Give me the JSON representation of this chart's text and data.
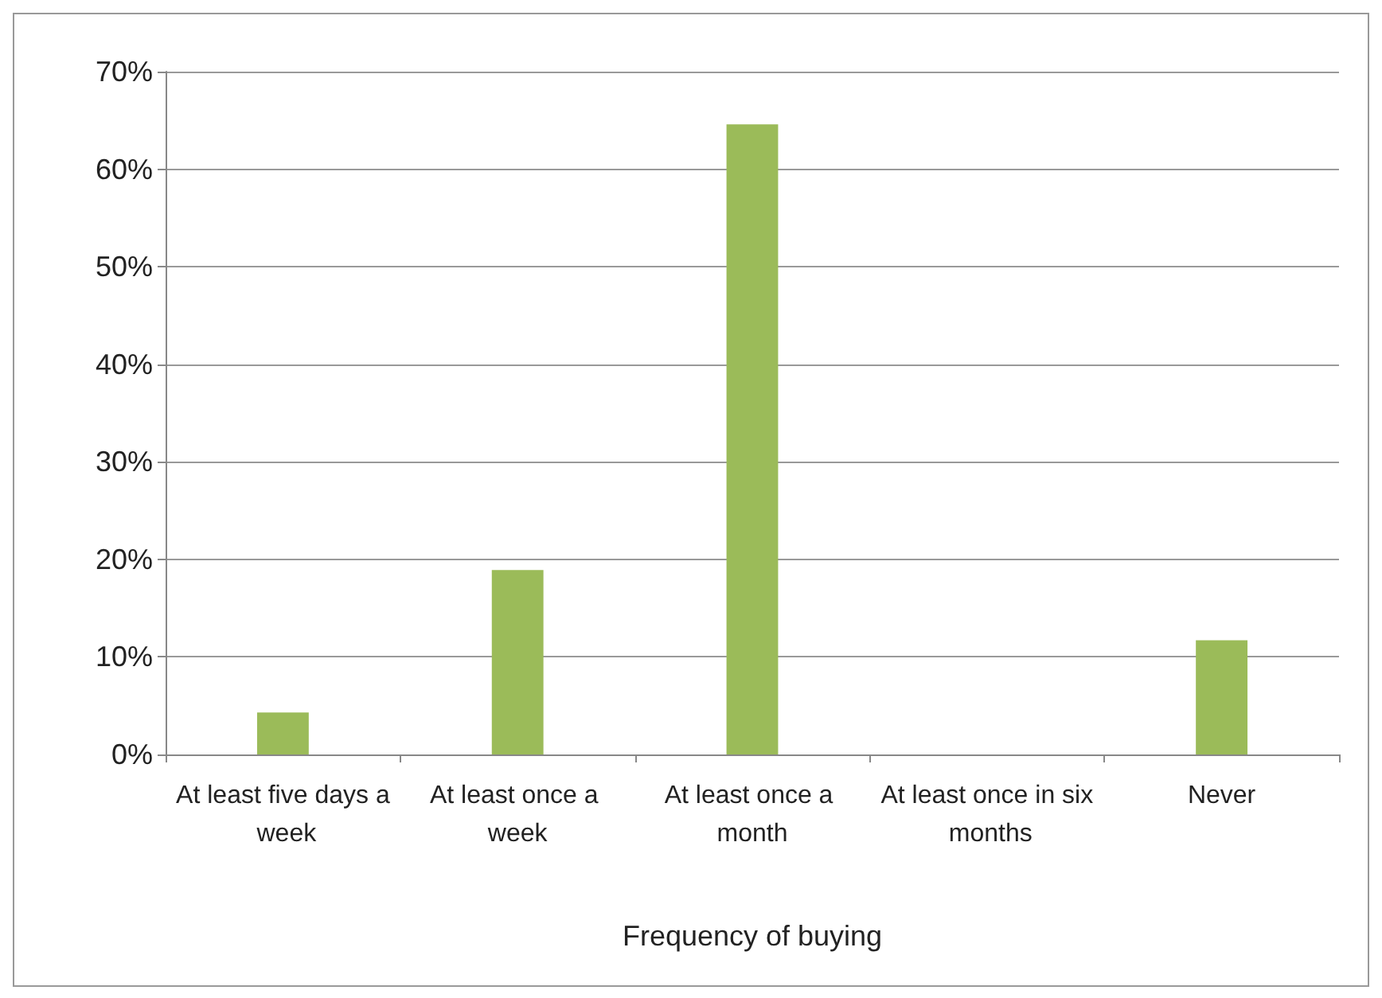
{
  "chart_data": {
    "type": "bar",
    "xlabel": "Frequency of buying",
    "categories": [
      "At least five days a week",
      "At least once a week",
      "At least once a month",
      "At least once in six months",
      "Never"
    ],
    "values": [
      4.3,
      18.9,
      64.6,
      0,
      11.7
    ],
    "color": "#9bbb59",
    "ylim": [
      0,
      70
    ],
    "yticks": [
      {
        "value": 0,
        "label": "0%"
      },
      {
        "value": 10,
        "label": "10%"
      },
      {
        "value": 20,
        "label": "20%"
      },
      {
        "value": 30,
        "label": "30%"
      },
      {
        "value": 40,
        "label": "40%"
      },
      {
        "value": 50,
        "label": "50%"
      },
      {
        "value": 60,
        "label": "60%"
      },
      {
        "value": 70,
        "label": "70%"
      }
    ],
    "grid": "y"
  }
}
